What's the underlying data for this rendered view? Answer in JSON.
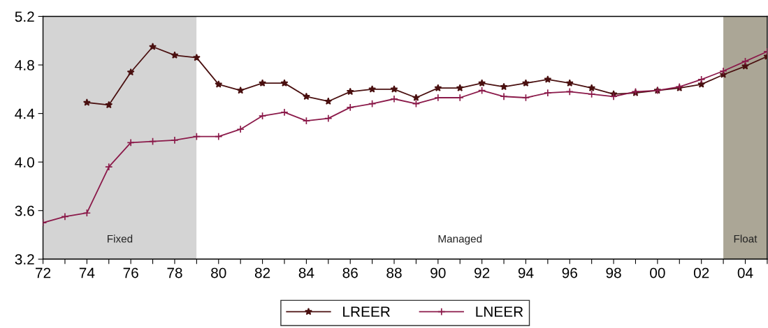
{
  "chart_data": {
    "type": "line",
    "x": [
      1972,
      1973,
      1974,
      1975,
      1976,
      1977,
      1978,
      1979,
      1980,
      1981,
      1982,
      1983,
      1984,
      1985,
      1986,
      1987,
      1988,
      1989,
      1990,
      1991,
      1992,
      1993,
      1994,
      1995,
      1996,
      1997,
      1998,
      1999,
      2000,
      2001,
      2002,
      2003,
      2004,
      2005
    ],
    "series": [
      {
        "name": "LREER",
        "color": "#4a1010",
        "marker": "star",
        "values": [
          null,
          null,
          4.49,
          4.47,
          4.74,
          4.95,
          4.88,
          4.86,
          4.64,
          4.59,
          4.65,
          4.65,
          4.54,
          4.5,
          4.58,
          4.6,
          4.6,
          4.53,
          4.61,
          4.61,
          4.65,
          4.62,
          4.65,
          4.68,
          4.65,
          4.61,
          4.56,
          4.57,
          4.59,
          4.61,
          4.64,
          4.72,
          4.79,
          4.87
        ]
      },
      {
        "name": "LNEER",
        "color": "#8b1a4a",
        "marker": "cross",
        "values": [
          3.5,
          3.55,
          3.58,
          3.96,
          4.16,
          4.17,
          4.18,
          4.21,
          4.21,
          4.27,
          4.38,
          4.41,
          4.34,
          4.36,
          4.45,
          4.48,
          4.52,
          4.48,
          4.53,
          4.53,
          4.59,
          4.54,
          4.53,
          4.57,
          4.58,
          4.56,
          4.54,
          4.58,
          4.59,
          4.62,
          4.68,
          4.75,
          4.83,
          4.91
        ]
      }
    ],
    "xlim": [
      1972,
      2005
    ],
    "xticks": [
      {
        "value": 1972,
        "label": "72"
      },
      {
        "value": 1973,
        "label": null
      },
      {
        "value": 1974,
        "label": "74"
      },
      {
        "value": 1975,
        "label": null
      },
      {
        "value": 1976,
        "label": "76"
      },
      {
        "value": 1977,
        "label": null
      },
      {
        "value": 1978,
        "label": "78"
      },
      {
        "value": 1979,
        "label": null
      },
      {
        "value": 1980,
        "label": "80"
      },
      {
        "value": 1981,
        "label": null
      },
      {
        "value": 1982,
        "label": "82"
      },
      {
        "value": 1983,
        "label": null
      },
      {
        "value": 1984,
        "label": "84"
      },
      {
        "value": 1985,
        "label": null
      },
      {
        "value": 1986,
        "label": "86"
      },
      {
        "value": 1987,
        "label": null
      },
      {
        "value": 1988,
        "label": "88"
      },
      {
        "value": 1989,
        "label": null
      },
      {
        "value": 1990,
        "label": "90"
      },
      {
        "value": 1991,
        "label": null
      },
      {
        "value": 1992,
        "label": "92"
      },
      {
        "value": 1993,
        "label": null
      },
      {
        "value": 1994,
        "label": "94"
      },
      {
        "value": 1995,
        "label": null
      },
      {
        "value": 1996,
        "label": "96"
      },
      {
        "value": 1997,
        "label": null
      },
      {
        "value": 1998,
        "label": "98"
      },
      {
        "value": 1999,
        "label": null
      },
      {
        "value": 2000,
        "label": "00"
      },
      {
        "value": 2001,
        "label": null
      },
      {
        "value": 2002,
        "label": "02"
      },
      {
        "value": 2003,
        "label": null
      },
      {
        "value": 2004,
        "label": "04"
      },
      {
        "value": 2005,
        "label": null
      }
    ],
    "ylim": [
      3.2,
      5.2
    ],
    "yticks": [
      3.2,
      3.6,
      {
        "value": 4.0,
        "label": "4.0"
      },
      4.4,
      4.8,
      5.2
    ],
    "bands": [
      {
        "axis": "x",
        "from": 1972,
        "to": 1979,
        "label": "Fixed",
        "color": "#d4d4d4"
      },
      {
        "axis": "x",
        "from": 1979,
        "to": 2003,
        "label": "Managed",
        "color": "#ffffff"
      },
      {
        "axis": "x",
        "from": 2003,
        "to": 2005,
        "label": "Float",
        "color": "#aba696"
      }
    ],
    "grid": false,
    "legend": "bottom",
    "line_style": "solid"
  }
}
